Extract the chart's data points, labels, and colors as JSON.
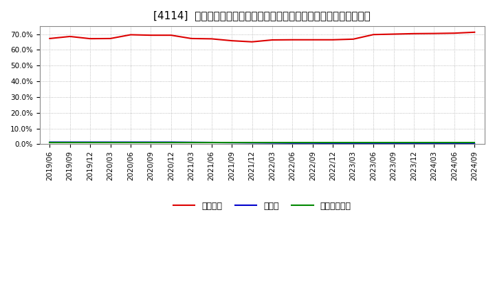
{
  "title": "[4114]  自己資本、のれん、繰延税金資産の総資産に対する比率の推移",
  "x_labels": [
    "2019/06",
    "2019/09",
    "2019/12",
    "2020/03",
    "2020/06",
    "2020/09",
    "2020/12",
    "2021/03",
    "2021/06",
    "2021/09",
    "2021/12",
    "2022/03",
    "2022/06",
    "2022/09",
    "2022/12",
    "2023/03",
    "2023/06",
    "2023/09",
    "2023/12",
    "2024/03",
    "2024/06",
    "2024/09"
  ],
  "jikoshihon": [
    0.672,
    0.685,
    0.671,
    0.672,
    0.696,
    0.693,
    0.693,
    0.672,
    0.67,
    0.658,
    0.651,
    0.663,
    0.664,
    0.664,
    0.664,
    0.668,
    0.697,
    0.7,
    0.703,
    0.704,
    0.706,
    0.712
  ],
  "noren": [
    0.013,
    0.013,
    0.013,
    0.013,
    0.013,
    0.013,
    0.013,
    0.012,
    0.011,
    0.01,
    0.009,
    0.008,
    0.007,
    0.007,
    0.006,
    0.005,
    0.004,
    0.004,
    0.003,
    0.003,
    0.002,
    0.002
  ],
  "kurinobezeikinsisan": [
    0.01,
    0.01,
    0.01,
    0.01,
    0.01,
    0.01,
    0.01,
    0.01,
    0.01,
    0.01,
    0.01,
    0.01,
    0.01,
    0.01,
    0.01,
    0.01,
    0.01,
    0.01,
    0.01,
    0.01,
    0.01,
    0.01
  ],
  "line_colors": {
    "jikoshihon": "#dd0000",
    "noren": "#0000cc",
    "kurinobezeikinsisan": "#008800"
  },
  "legend_label_jikoshihon": "自己資本",
  "legend_label_noren": "のれん",
  "legend_label_kurinobezeikinsisan": "繰延税金資産",
  "ylim": [
    0.0,
    0.75
  ],
  "yticks": [
    0.0,
    0.1,
    0.2,
    0.3,
    0.4,
    0.5,
    0.6,
    0.7
  ],
  "background_color": "#ffffff",
  "plot_bg_color": "#ffffff",
  "grid_color": "#aaaaaa",
  "title_fontsize": 11,
  "tick_fontsize": 7.5,
  "legend_fontsize": 9
}
